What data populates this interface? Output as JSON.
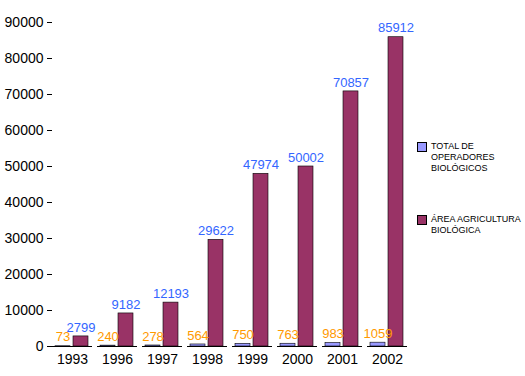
{
  "chart_data": {
    "type": "bar",
    "categories": [
      "1993",
      "1996",
      "1997",
      "1998",
      "1999",
      "2000",
      "2001",
      "2002"
    ],
    "series": [
      {
        "name": "TOTAL DE OPERADORES BIOLÓGICOS",
        "color": "#9999ff",
        "values": [
          73,
          240,
          278,
          564,
          750,
          763,
          983,
          1059
        ]
      },
      {
        "name": "ÁREA AGRICULTURA BIOLÓGICA",
        "color": "#993366",
        "values": [
          2799,
          9182,
          12193,
          29622,
          47974,
          50002,
          70857,
          85912
        ]
      }
    ],
    "ylim": [
      0,
      90000
    ],
    "yticks": [
      0,
      10000,
      20000,
      30000,
      40000,
      50000,
      60000,
      70000,
      80000,
      90000
    ],
    "grid": false,
    "legend": "right",
    "data_labels": true
  }
}
